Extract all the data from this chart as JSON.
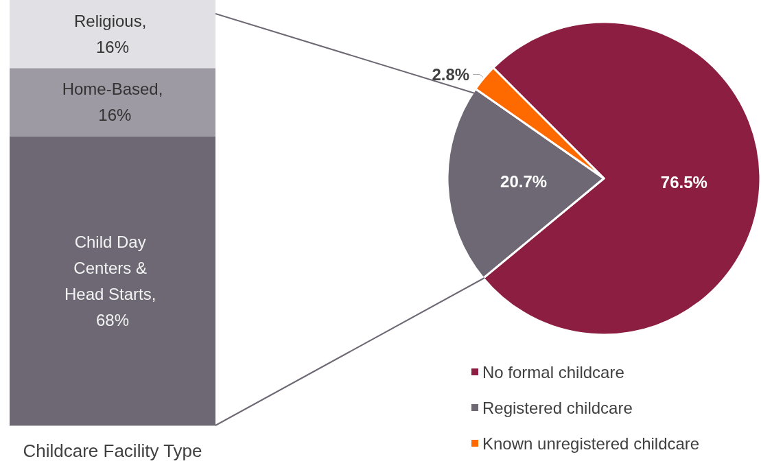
{
  "chart_data": [
    {
      "type": "bar",
      "stacked": true,
      "xlabel": "Childcare Facility Type",
      "categories": [
        null
      ],
      "series": [
        {
          "color": "#6d6873",
          "values": [
            68
          ],
          "value_labels": [
            "Child Day Centers & Head Starts, 68%"
          ]
        },
        {
          "color": "#9e9aa3",
          "values": [
            16
          ],
          "value_labels": [
            "Home-Based, 16%"
          ]
        },
        {
          "color": "#e1e0e4",
          "values": [
            16
          ],
          "value_labels": [
            "Religious, 16%"
          ]
        }
      ]
    },
    {
      "type": "pie",
      "categories": [
        "No formal childcare",
        "Registered childcare",
        "Known unregistered childcare"
      ],
      "values": [
        76.5,
        20.7,
        2.8
      ],
      "colors": [
        "#8b1e41",
        "#6d6873",
        "#ff6a00"
      ],
      "value_labels": [
        "76.5%",
        "20.7%",
        "2.8%"
      ],
      "legend": "bottom"
    }
  ]
}
